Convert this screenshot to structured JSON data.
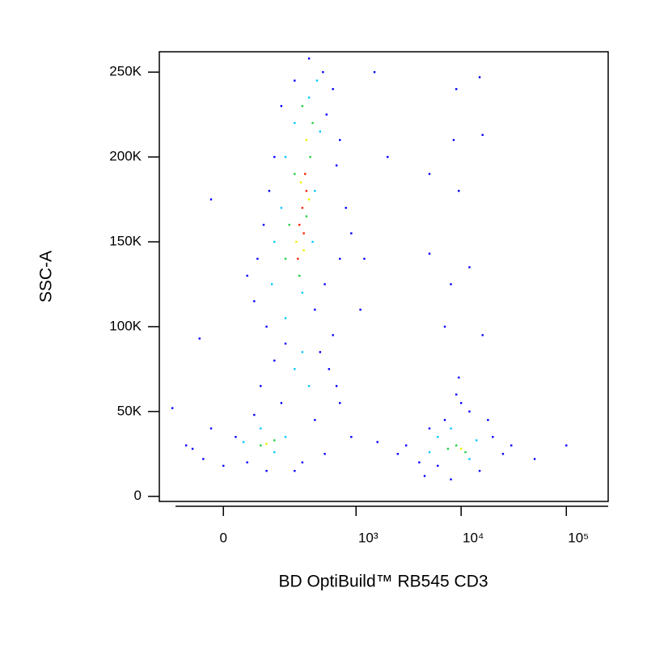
{
  "chart_data": {
    "type": "scatter",
    "xlabel": "BD OptiBuild™ RB545 CD3",
    "ylabel": "SSC-A",
    "xscale": "biexponential",
    "xlim": [
      -210,
      250000
    ],
    "ylim": [
      -3000,
      262000
    ],
    "xticks": [
      0,
      {
        "value": 1000,
        "label": "10³"
      },
      {
        "value": 10000,
        "label": "10⁴"
      },
      {
        "value": 100000,
        "label": "10⁵"
      }
    ],
    "yticks": [
      0,
      {
        "value": 50000,
        "label": "50K"
      },
      {
        "value": 100000,
        "label": "100K"
      },
      {
        "value": 150000,
        "label": "150K"
      },
      {
        "value": 200000,
        "label": "200K"
      },
      {
        "value": 250000,
        "label": "250K"
      }
    ],
    "series": [
      {
        "color": "#0000ff",
        "x": [
          350,
          480,
          250,
          600,
          180,
          520,
          700,
          150,
          650,
          130,
          800,
          110,
          900,
          90,
          700,
          60,
          500,
          80,
          400,
          120,
          600,
          200,
          450,
          150,
          550,
          100,
          650,
          180,
          700,
          80,
          400,
          -30,
          30,
          -80,
          -50,
          0,
          60,
          300,
          500,
          900,
          -150,
          -100,
          250,
          120,
          -30,
          -60,
          1500,
          2000,
          1200,
          1100,
          3000,
          4000,
          5000,
          6000,
          7000,
          8000,
          12000,
          15000,
          20000,
          25000,
          30000,
          4500,
          18000,
          9000,
          2500,
          1600,
          50000,
          100000,
          10000,
          9000,
          15000,
          8500,
          9500,
          16000,
          5000,
          5000,
          12000,
          8000,
          16000,
          9500,
          7000
        ],
        "values": [
          258000,
          250000,
          245000,
          240000,
          230000,
          225000,
          210000,
          200000,
          195000,
          180000,
          170000,
          160000,
          155000,
          140000,
          140000,
          130000,
          125000,
          115000,
          110000,
          100000,
          95000,
          90000,
          85000,
          80000,
          75000,
          65000,
          65000,
          55000,
          55000,
          48000,
          45000,
          40000,
          35000,
          28000,
          22000,
          18000,
          20000,
          20000,
          25000,
          35000,
          52000,
          30000,
          15000,
          15000,
          175000,
          93000,
          250000,
          200000,
          140000,
          110000,
          30000,
          20000,
          40000,
          18000,
          45000,
          10000,
          50000,
          15000,
          35000,
          25000,
          30000,
          12000,
          45000,
          60000,
          25000,
          32000,
          22000,
          30000,
          55000,
          240000,
          247000,
          210000,
          180000,
          213000,
          190000,
          143000,
          135000,
          125000,
          95000,
          70000,
          100000
        ]
      },
      {
        "color": "#00c8ff",
        "x": [
          250,
          350,
          420,
          200,
          450,
          180,
          400,
          150,
          380,
          140,
          300,
          200,
          250,
          350,
          300,
          50,
          150,
          200,
          100,
          6000,
          12000,
          8000,
          14000,
          5000
        ],
        "values": [
          220000,
          235000,
          245000,
          200000,
          215000,
          170000,
          180000,
          150000,
          150000,
          125000,
          120000,
          105000,
          75000,
          65000,
          85000,
          32000,
          26000,
          35000,
          40000,
          35000,
          22000,
          40000,
          33000,
          26000
        ]
      },
      {
        "color": "#20d040",
        "x": [
          300,
          380,
          250,
          360,
          220,
          330,
          200,
          280,
          100,
          150,
          9000,
          11000,
          7500
        ],
        "values": [
          230000,
          220000,
          190000,
          200000,
          160000,
          165000,
          140000,
          130000,
          30000,
          33000,
          30000,
          26000,
          28000
        ]
      },
      {
        "color": "#f0f000",
        "x": [
          330,
          290,
          350,
          260,
          310,
          120,
          10000
        ],
        "values": [
          210000,
          185000,
          175000,
          150000,
          145000,
          31000,
          28000
        ]
      },
      {
        "color": "#ff2000",
        "x": [
          320,
          300,
          280,
          330,
          270,
          310
        ],
        "values": [
          190000,
          170000,
          160000,
          180000,
          140000,
          155000
        ]
      }
    ]
  }
}
